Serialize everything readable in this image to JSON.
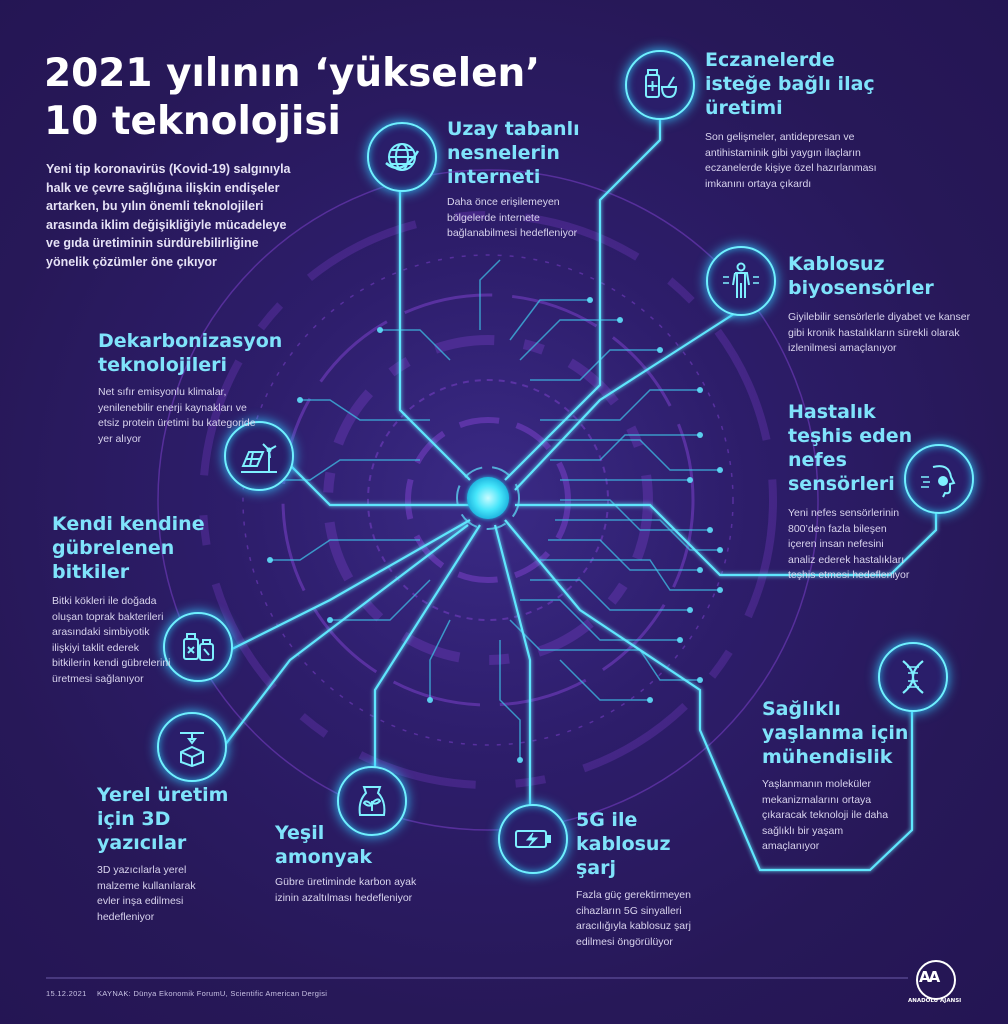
{
  "title": {
    "line1": "2021 yılının ‘yükselen’",
    "line2": "10 teknolojisi"
  },
  "intro": "Yeni tip koronavirüs (Kovid-19) salgınıyla halk ve çevre sağlığına ilişkin endişeler artarken, bu yılın önemli teknolojileri arasında iklim değişikliğiyle mücadeleye ve gıda üretiminin sürdürebilirliğine yönelik çözümler öne çıkıyor",
  "technologies": [
    {
      "heading": "Uzay tabanlı nesnelerin interneti",
      "text": "Daha önce erişilemeyen bölgelerde internete bağlanabilmesi hedefleniyor",
      "icon": "globe-icon"
    },
    {
      "heading": "Eczanelerde isteğe bağlı ilaç üretimi",
      "text": "Son gelişmeler, antidepresan ve antihistaminik gibi yaygın ilaçların eczanelerde kişiye özel hazırlanması imkanını ortaya çıkardı",
      "icon": "pharmacy-icon"
    },
    {
      "heading": "Kablosuz biyosensörler",
      "text": "Giyilebilir sensörlerle diyabet ve kanser gibi kronik hastalıkların sürekli olarak izlenilmesi amaçlanıyor",
      "icon": "human-body-icon"
    },
    {
      "heading": "Dekarbonizasyon teknolojileri",
      "text": "Net sıfır emisyonlu klimalar, yenilenebilir enerji kaynakları ve etsiz protein üretimi bu kategoride yer alıyor",
      "icon": "renewable-energy-icon"
    },
    {
      "heading": "Hastalık teşhis eden nefes sensörleri",
      "text": "Yeni nefes sensörlerinin 800’den fazla bileşen içeren insan nefesini analiz ederek hastalıkları teşhis etmesi hedefleniyor",
      "icon": "breath-sensor-icon"
    },
    {
      "heading": "Kendi kendine gübrelenen bitkiler",
      "text": "Bitki kökleri ile doğada oluşan toprak bakterileri arasındaki simbiyotik ilişkiyi taklit ederek bitkilerin kendi gübrelerini üretmesi sağlanıyor",
      "icon": "fertilizer-icon"
    },
    {
      "heading": "Sağlıklı yaşlanma için mühendislik",
      "text": "Yaşlanmanın moleküler mekanizmalarını ortaya çıkaracak teknoloji ile daha sağlıklı bir yaşam amaçlanıyor",
      "icon": "dna-icon"
    },
    {
      "heading": "Yerel üretim için 3D yazıcılar",
      "text": "3D yazıcılarla yerel malzeme kullanılarak evler inşa edilmesi hedefleniyor",
      "icon": "3d-printer-icon"
    },
    {
      "heading": "Yeşil amonyak",
      "text": "Gübre üretiminde karbon ayak izinin azaltılması hedefleniyor",
      "icon": "ammonia-bag-icon"
    },
    {
      "heading": "5G ile kablosuz şarj",
      "text": "Fazla güç gerektirmeyen cihazların 5G sinyalleri aracılığıyla kablosuz şarj edilmesi öngörülüyor",
      "icon": "battery-charging-icon"
    }
  ],
  "footer": {
    "date": "15.12.2021",
    "source": "KAYNAK: Dünya Ekonomik ForumU, Scientific American Dergisi"
  },
  "logo": {
    "mark": "AA",
    "name": "ANADOLU AJANSI"
  },
  "colors": {
    "background": "#2a1b63",
    "accent": "#7fe3fb",
    "circuit": "#47d8f5",
    "hub": "#3ee6fb",
    "rings": "#8b4fd6"
  }
}
